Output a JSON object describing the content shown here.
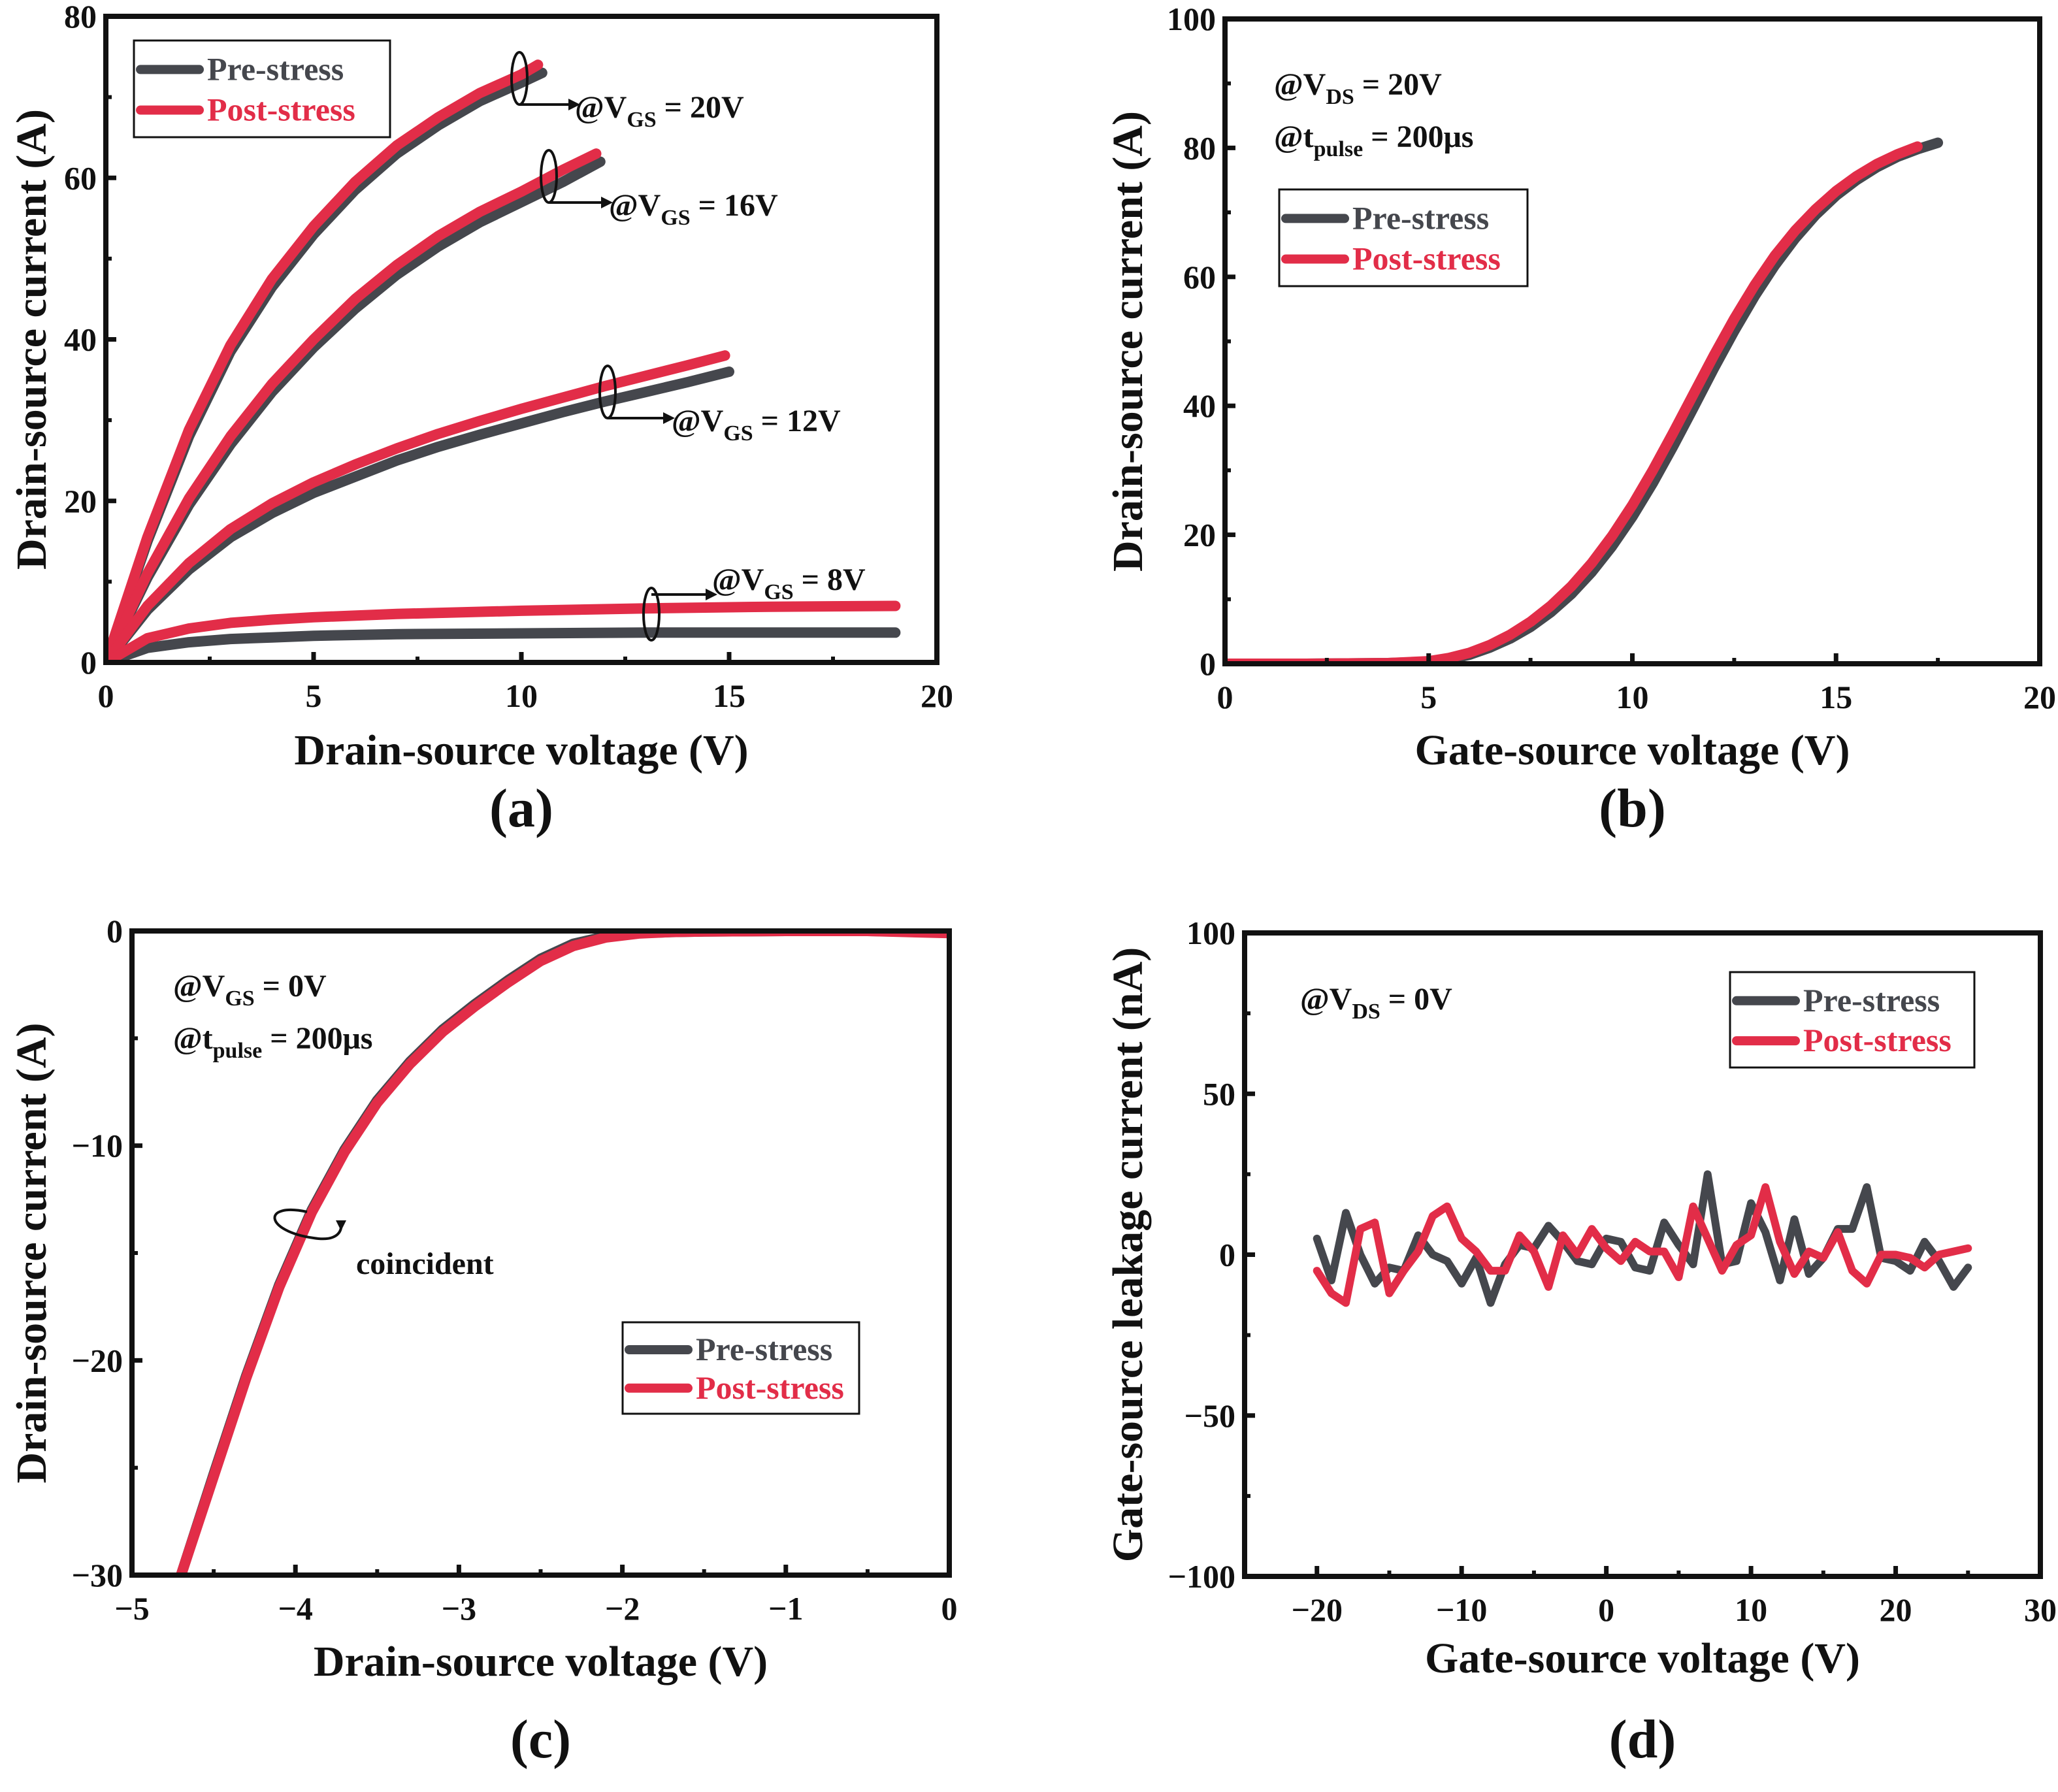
{
  "colors": {
    "pre": "#45474d",
    "post": "#e22d48",
    "frame": "#111111"
  },
  "chart_data": [
    {
      "id": "a",
      "type": "line",
      "panel_label": "(a)",
      "xlabel": "Drain-source voltage (V)",
      "ylabel": "Drain-source current (A)",
      "xlim": [
        0,
        20
      ],
      "ylim": [
        0,
        80
      ],
      "xticks": [
        0,
        5,
        10,
        15,
        20
      ],
      "yticks": [
        0,
        20,
        40,
        60,
        80
      ],
      "legend": {
        "position": "top-left",
        "entries": [
          "Pre-stress",
          "Post-stress"
        ]
      },
      "annotations": [
        {
          "prefix": "@V",
          "sub": "GS",
          "suffix": " = 20V"
        },
        {
          "prefix": "@V",
          "sub": "GS",
          "suffix": " = 16V"
        },
        {
          "prefix": "@V",
          "sub": "GS",
          "suffix": " = 12V"
        },
        {
          "prefix": "@V",
          "sub": "GS",
          "suffix": " = 8V"
        }
      ],
      "series": [
        {
          "name": "Pre-stress",
          "group": "VGS=20V",
          "x": [
            0,
            1,
            2,
            3,
            4,
            5,
            6,
            7,
            8,
            9,
            10,
            10.5
          ],
          "y": [
            0,
            15,
            28,
            38.5,
            46.5,
            53,
            58.5,
            63,
            66.5,
            69.5,
            71.8,
            73
          ]
        },
        {
          "name": "Post-stress",
          "group": "VGS=20V",
          "x": [
            0,
            1,
            2,
            3,
            4,
            5,
            6,
            7,
            8,
            9,
            10,
            10.4
          ],
          "y": [
            0,
            15.5,
            28.8,
            39.3,
            47.5,
            54,
            59.5,
            64,
            67.5,
            70.5,
            72.8,
            74
          ]
        },
        {
          "name": "Pre-stress",
          "group": "VGS=16V",
          "x": [
            0,
            1,
            2,
            3,
            4,
            5,
            6,
            7,
            8,
            9,
            10,
            11,
            11.9
          ],
          "y": [
            0,
            10.5,
            19.5,
            27,
            33.5,
            39,
            43.8,
            48,
            51.5,
            54.5,
            57,
            59.5,
            62
          ]
        },
        {
          "name": "Post-stress",
          "group": "VGS=16V",
          "x": [
            0,
            1,
            2,
            3,
            4,
            5,
            6,
            7,
            8,
            9,
            10,
            11,
            11.8
          ],
          "y": [
            0,
            11,
            20.3,
            28,
            34.5,
            40,
            45,
            49.2,
            52.8,
            55.8,
            58.3,
            61,
            63
          ]
        },
        {
          "name": "Pre-stress",
          "group": "VGS=12V",
          "x": [
            0,
            1,
            2,
            3,
            4,
            5,
            6,
            7,
            8,
            9,
            10,
            11,
            12,
            13,
            14,
            15
          ],
          "y": [
            0,
            6.5,
            11.5,
            15.5,
            18.5,
            21,
            23,
            25,
            26.7,
            28.2,
            29.6,
            31,
            32.3,
            33.5,
            34.7,
            36
          ]
        },
        {
          "name": "Post-stress",
          "group": "VGS=12V",
          "x": [
            0,
            1,
            2,
            3,
            4,
            5,
            6,
            7,
            8,
            9,
            10,
            11,
            12,
            13,
            14,
            14.9
          ],
          "y": [
            0,
            7,
            12.3,
            16.5,
            19.7,
            22.3,
            24.5,
            26.5,
            28.3,
            29.9,
            31.4,
            32.8,
            34.2,
            35.5,
            36.8,
            38
          ]
        },
        {
          "name": "Pre-stress",
          "group": "VGS=8V",
          "x": [
            0,
            1,
            2,
            3,
            4,
            5,
            7,
            10,
            13,
            16,
            19
          ],
          "y": [
            0,
            1.8,
            2.5,
            2.9,
            3.1,
            3.3,
            3.5,
            3.6,
            3.7,
            3.7,
            3.7
          ]
        },
        {
          "name": "Post-stress",
          "group": "VGS=8V",
          "x": [
            0,
            1,
            2,
            3,
            4,
            5,
            7,
            10,
            13,
            16,
            19
          ],
          "y": [
            0,
            3,
            4.2,
            4.9,
            5.3,
            5.6,
            6.0,
            6.4,
            6.7,
            6.9,
            7.0
          ]
        }
      ]
    },
    {
      "id": "b",
      "type": "line",
      "panel_label": "(b)",
      "xlabel": "Gate-source voltage (V)",
      "ylabel": "Drain-source current (A)",
      "xlim": [
        0,
        20
      ],
      "ylim": [
        0,
        100
      ],
      "xticks": [
        0,
        5,
        10,
        15,
        20
      ],
      "yticks": [
        0,
        20,
        40,
        60,
        80,
        100
      ],
      "legend": {
        "position": "upper-left",
        "entries": [
          "Pre-stress",
          "Post-stress"
        ]
      },
      "annotations": [
        {
          "prefix": "@V",
          "sub": "DS",
          "suffix": " = 20V"
        },
        {
          "prefix": "@t",
          "sub": "pulse",
          "suffix": " = 200μs"
        }
      ],
      "series": [
        {
          "name": "Pre-stress",
          "x": [
            0,
            2,
            4,
            5,
            5.5,
            6,
            6.5,
            7,
            7.5,
            8,
            8.5,
            9,
            9.5,
            10,
            10.5,
            11,
            11.5,
            12,
            12.5,
            13,
            13.5,
            14,
            14.5,
            15,
            15.5,
            16,
            16.5,
            17,
            17.5
          ],
          "y": [
            0,
            0,
            0.1,
            0.3,
            0.7,
            1.4,
            2.5,
            3.9,
            5.7,
            8,
            10.8,
            14.2,
            18.2,
            22.8,
            28,
            33.7,
            39.7,
            45.8,
            51.6,
            57,
            61.8,
            66,
            69.6,
            72.6,
            75,
            77,
            78.6,
            79.8,
            80.8
          ]
        },
        {
          "name": "Post-stress",
          "x": [
            0,
            2,
            4,
            5,
            5.5,
            6,
            6.5,
            7,
            7.5,
            8,
            8.5,
            9,
            9.5,
            10,
            10.5,
            11,
            11.5,
            12,
            12.5,
            13,
            13.5,
            14,
            14.5,
            15,
            15.5,
            16,
            16.5,
            17
          ],
          "y": [
            0,
            0,
            0.1,
            0.4,
            0.9,
            1.7,
            2.9,
            4.5,
            6.5,
            9,
            12,
            15.6,
            19.8,
            24.6,
            30,
            35.8,
            41.8,
            47.8,
            53.5,
            58.7,
            63.3,
            67.2,
            70.5,
            73.3,
            75.6,
            77.5,
            79,
            80.2
          ]
        }
      ]
    },
    {
      "id": "c",
      "type": "line",
      "panel_label": "(c)",
      "xlabel": "Drain-source voltage (V)",
      "ylabel": "Drain-source current (A)",
      "xlim": [
        -5,
        0
      ],
      "ylim": [
        -30,
        0
      ],
      "xticks": [
        -5,
        -4,
        -3,
        -2,
        -1,
        0
      ],
      "yticks": [
        -30,
        -20,
        -10,
        0
      ],
      "legend": {
        "position": "lower-right",
        "entries": [
          "Pre-stress",
          "Post-stress"
        ]
      },
      "annotations": [
        {
          "prefix": "@V",
          "sub": "GS",
          "suffix": " = 0V"
        },
        {
          "prefix": "@t",
          "sub": "pulse",
          "suffix": " = 200μs"
        },
        {
          "text": "coincident"
        }
      ],
      "series": [
        {
          "name": "Pre-stress",
          "x": [
            -4.7,
            -4.5,
            -4.3,
            -4.1,
            -3.9,
            -3.7,
            -3.5,
            -3.3,
            -3.1,
            -2.9,
            -2.7,
            -2.5,
            -2.3,
            -2.1,
            -1.9,
            -1.7,
            -1.5,
            -1,
            -0.5,
            0
          ],
          "y": [
            -30,
            -25.3,
            -20.7,
            -16.5,
            -13,
            -10.2,
            -7.9,
            -6.1,
            -4.6,
            -3.4,
            -2.3,
            -1.3,
            -0.6,
            -0.25,
            -0.1,
            -0.05,
            -0.02,
            0,
            0,
            -0.05
          ]
        },
        {
          "name": "Post-stress",
          "x": [
            -4.7,
            -4.5,
            -4.3,
            -4.1,
            -3.9,
            -3.7,
            -3.5,
            -3.3,
            -3.1,
            -2.9,
            -2.7,
            -2.5,
            -2.3,
            -2.1,
            -1.9,
            -1.7,
            -1.5,
            -1,
            -0.5,
            0
          ],
          "y": [
            -30,
            -25.4,
            -20.8,
            -16.6,
            -13.1,
            -10.3,
            -8.0,
            -6.2,
            -4.7,
            -3.5,
            -2.4,
            -1.4,
            -0.7,
            -0.3,
            -0.12,
            -0.05,
            -0.02,
            0,
            0,
            -0.1
          ]
        }
      ]
    },
    {
      "id": "d",
      "type": "line",
      "panel_label": "(d)",
      "xlabel": "Gate-source voltage (V)",
      "ylabel": "Gate-source leakage current (nA)",
      "xlim": [
        -25,
        30
      ],
      "ylim": [
        -100,
        100
      ],
      "xticks": [
        -20,
        -10,
        0,
        10,
        20,
        30
      ],
      "yticks": [
        -100,
        -50,
        0,
        50,
        100
      ],
      "legend": {
        "position": "top-right",
        "entries": [
          "Pre-stress",
          "Post-stress"
        ]
      },
      "annotations": [
        {
          "prefix": "@V",
          "sub": "DS",
          "suffix": " = 0V"
        }
      ],
      "series": [
        {
          "name": "Pre-stress",
          "x_start": -20,
          "x_step": 1,
          "y": [
            5,
            -8,
            13,
            0,
            -9,
            -4,
            -5,
            6,
            0,
            -2,
            -9,
            -1,
            -15,
            -3,
            3,
            2,
            9,
            4,
            -2,
            -3,
            5,
            4,
            -4,
            -5,
            10,
            3,
            -3,
            25,
            -3,
            -2,
            16,
            7,
            -8,
            11,
            -6,
            -1,
            8,
            8,
            21,
            -1,
            -2,
            -5,
            4,
            -2,
            -10,
            -4
          ]
        },
        {
          "name": "Post-stress",
          "x_start": -20,
          "x_step": 1,
          "y": [
            -5,
            -12,
            -15,
            8,
            10,
            -12,
            -5,
            1,
            12,
            15,
            5,
            1,
            -5,
            -5,
            6,
            1,
            -10,
            6,
            0,
            8,
            2,
            -2,
            4,
            1,
            1,
            -7,
            15,
            5,
            -5,
            3,
            6,
            21,
            4,
            -6,
            1,
            -1,
            7,
            -5,
            -9,
            0,
            0,
            -1,
            -4,
            0,
            1,
            2
          ]
        }
      ]
    }
  ]
}
